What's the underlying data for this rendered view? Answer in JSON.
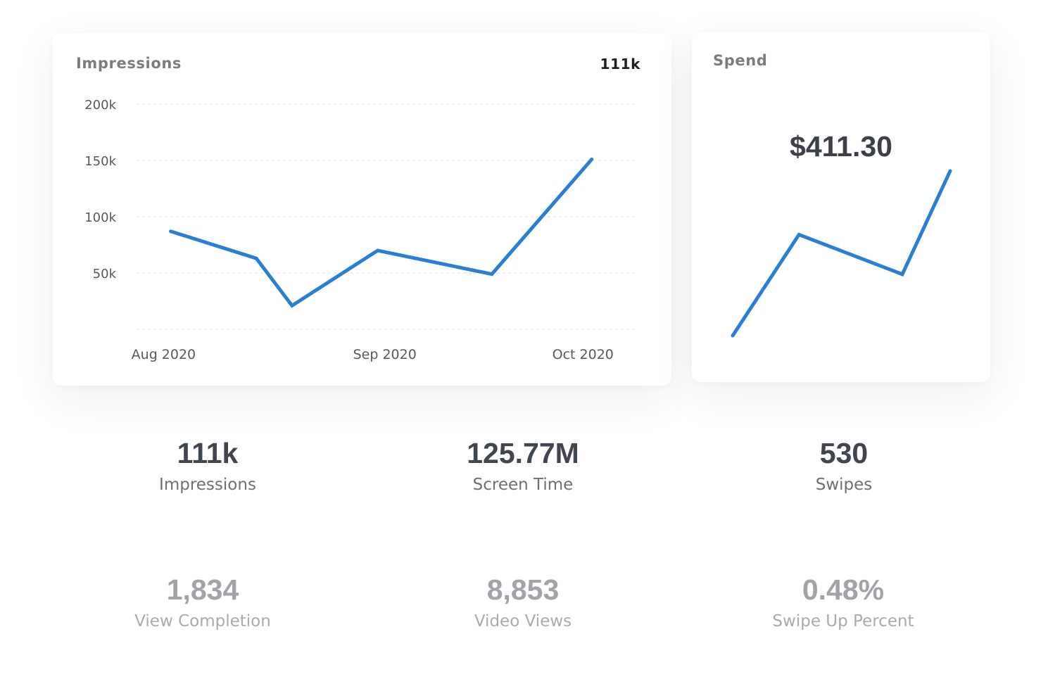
{
  "impressions_card": {
    "title": "Impressions",
    "total": "111k"
  },
  "spend_card": {
    "title": "Spend",
    "value": "$411.30"
  },
  "chart_data": [
    {
      "type": "line",
      "title": "Impressions",
      "y_ticks": [
        {
          "value": 200000,
          "label": "200k"
        },
        {
          "value": 150000,
          "label": "150k"
        },
        {
          "value": 100000,
          "label": "100k"
        },
        {
          "value": 50000,
          "label": "50k"
        },
        {
          "value": 0,
          "label": ""
        }
      ],
      "ylim": [
        0,
        200000
      ],
      "xlim": [
        "2020-07-29",
        "2020-10-09"
      ],
      "x_ticks": [
        {
          "date": "2020-08-01",
          "label": "Aug 2020"
        },
        {
          "date": "2020-09-01",
          "label": "Sep 2020"
        },
        {
          "date": "2020-10-01",
          "label": "Oct 2020"
        }
      ],
      "grid": true,
      "color": "#2a7fd4",
      "series": [
        {
          "x": [
            "2020-08-02",
            "2020-08-14",
            "2020-08-19",
            "2020-08-31",
            "2020-09-16",
            "2020-09-30"
          ],
          "values": [
            87000,
            63000,
            21000,
            70000,
            49000,
            151000
          ]
        }
      ]
    },
    {
      "type": "line",
      "title": "Spend",
      "color": "#2a7fd4",
      "series": [
        {
          "values": [
            70,
            205,
            152,
            290
          ]
        }
      ]
    }
  ],
  "stats": [
    {
      "value": "111k",
      "label": "Impressions"
    },
    {
      "value": "125.77M",
      "label": "Screen Time"
    },
    {
      "value": "530",
      "label": "Swipes"
    },
    {
      "value": "1,834",
      "label": "View Completion"
    },
    {
      "value": "8,853",
      "label": "Video Views"
    },
    {
      "value": "0.48%",
      "label": "Swipe Up Percent"
    }
  ]
}
